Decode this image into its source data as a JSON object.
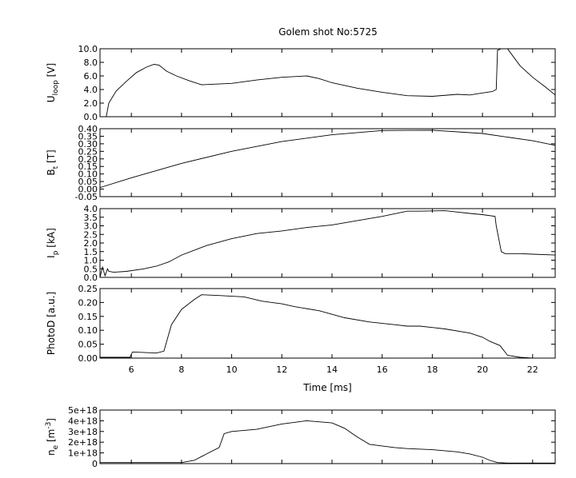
{
  "figure": {
    "title": "Golem shot No:5725"
  },
  "chart_data": [
    {
      "type": "line",
      "ylabel_main": "U",
      "ylabel_sub": "loop",
      "ylabel_tail": " [V]",
      "ylim": [
        0,
        10
      ],
      "yticks": [
        "0.0",
        "2.0",
        "4.0",
        "6.0",
        "8.0",
        "10.0"
      ],
      "xlim": [
        4.75,
        22.9
      ],
      "series": [
        {
          "x": [
            5.0,
            5.1,
            5.4,
            5.8,
            6.2,
            6.6,
            6.9,
            7.1,
            7.4,
            7.8,
            8.3,
            8.8,
            10,
            11,
            12,
            13,
            13.5,
            14,
            15,
            16,
            17,
            18,
            19,
            19.5,
            20,
            20.4,
            20.55,
            20.6,
            20.7,
            20.72,
            21.0,
            21.5,
            22,
            22.5,
            22.9
          ],
          "y": [
            0.0,
            2.0,
            3.8,
            5.2,
            6.5,
            7.3,
            7.7,
            7.6,
            6.7,
            6.0,
            5.3,
            4.7,
            4.9,
            5.4,
            5.8,
            6.0,
            5.6,
            5.0,
            4.2,
            3.6,
            3.1,
            3.0,
            3.3,
            3.2,
            3.5,
            3.7,
            4.0,
            9.8,
            9.9,
            10.0,
            10.0,
            7.5,
            5.8,
            4.4,
            3.2
          ]
        }
      ]
    },
    {
      "type": "line",
      "ylabel_main": "B",
      "ylabel_sub": "t",
      "ylabel_tail": " [T]",
      "ylim": [
        -0.05,
        0.4
      ],
      "yticks": [
        "-0.05",
        "0.00",
        "0.05",
        "0.10",
        "0.15",
        "0.20",
        "0.25",
        "0.30",
        "0.35",
        "0.40"
      ],
      "xlim": [
        4.75,
        22.9
      ],
      "series": [
        {
          "x": [
            4.75,
            6,
            8,
            10,
            12,
            14,
            16,
            18,
            20,
            22,
            22.9
          ],
          "y": [
            0.01,
            0.075,
            0.17,
            0.25,
            0.315,
            0.36,
            0.388,
            0.39,
            0.368,
            0.32,
            0.29
          ]
        }
      ]
    },
    {
      "type": "line",
      "ylabel_main": "I",
      "ylabel_sub": "p",
      "ylabel_tail": " [kA]",
      "ylim": [
        0,
        4.0
      ],
      "yticks": [
        "0.0",
        "0.5",
        "1.0",
        "1.5",
        "2.0",
        "2.5",
        "3.0",
        "3.5",
        "4.0"
      ],
      "xlim": [
        4.75,
        22.9
      ],
      "series": [
        {
          "x": [
            4.75,
            4.85,
            4.95,
            5.05,
            5.1,
            5.3,
            5.8,
            6.5,
            7.0,
            7.5,
            8.0,
            9.0,
            10.0,
            11.0,
            12.0,
            13.0,
            14.0,
            15.0,
            16.0,
            17.0,
            17.5,
            18.5,
            19.0,
            19.5,
            20.0,
            20.5,
            20.55,
            20.75,
            20.9,
            21.5,
            22.0,
            22.9
          ],
          "y": [
            0.0,
            0.6,
            0.1,
            0.5,
            0.35,
            0.3,
            0.35,
            0.5,
            0.65,
            0.9,
            1.3,
            1.85,
            2.25,
            2.55,
            2.7,
            2.9,
            3.05,
            3.3,
            3.55,
            3.85,
            3.85,
            3.88,
            3.8,
            3.72,
            3.65,
            3.55,
            3.0,
            1.5,
            1.38,
            1.38,
            1.35,
            1.3
          ]
        }
      ]
    },
    {
      "type": "line",
      "ylabel_main": "PhotoD",
      "ylabel_sub": "",
      "ylabel_tail": " [a.u.]",
      "ylim": [
        0,
        0.25
      ],
      "yticks": [
        "0.00",
        "0.05",
        "0.10",
        "0.15",
        "0.20",
        "0.25"
      ],
      "xlim": [
        4.75,
        22.9
      ],
      "xticks": [
        "6",
        "8",
        "10",
        "12",
        "14",
        "16",
        "18",
        "20",
        "22"
      ],
      "xlabel": "Time [ms]",
      "series": [
        {
          "x": [
            4.75,
            5.95,
            6.0,
            6.05,
            7.0,
            7.3,
            7.6,
            8.0,
            8.5,
            8.8,
            9.5,
            10.5,
            11.2,
            11.6,
            12.0,
            12.5,
            13.5,
            14.5,
            15.5,
            16.5,
            17.0,
            17.5,
            18.0,
            18.5,
            19.5,
            20.0,
            20.3,
            20.7,
            21.0,
            21.5,
            22.0,
            22.9
          ],
          "y": [
            0.003,
            0.003,
            0.015,
            0.022,
            0.018,
            0.025,
            0.12,
            0.175,
            0.21,
            0.228,
            0.225,
            0.22,
            0.205,
            0.2,
            0.195,
            0.185,
            0.17,
            0.145,
            0.13,
            0.12,
            0.115,
            0.115,
            0.11,
            0.105,
            0.09,
            0.075,
            0.06,
            0.045,
            0.01,
            0.003,
            0.0,
            0.0
          ]
        }
      ]
    },
    {
      "type": "line",
      "ylabel_main": "n",
      "ylabel_sub": "e",
      "ylabel_tail": " [m",
      "ylabel_sup": "-3",
      "ylabel_end": "]",
      "ylim": [
        0,
        5e+18
      ],
      "yticks": [
        "0",
        "1e+18",
        "2e+18",
        "3e+18",
        "4e+18",
        "5e+18"
      ],
      "xlim": [
        4.75,
        22.9
      ],
      "series": [
        {
          "x": [
            4.75,
            8.0,
            8.5,
            9.0,
            9.5,
            9.7,
            10.0,
            11.0,
            12.0,
            13.0,
            14.0,
            14.5,
            15.0,
            15.5,
            16.5,
            17.0,
            18.0,
            19.0,
            19.5,
            20.0,
            20.3,
            20.6,
            21.0,
            22.0,
            22.9
          ],
          "y": [
            1e+17,
            1e+17,
            3e+17,
            9e+17,
            1.5e+18,
            2.8e+18,
            3e+18,
            3.2e+18,
            3.7e+18,
            4e+18,
            3.8e+18,
            3.3e+18,
            2.5e+18,
            1.8e+18,
            1.5e+18,
            1.4e+18,
            1.3e+18,
            1.1e+18,
            9e+17,
            6e+17,
            3e+17,
            1e+17,
            5e+16,
            5e+16,
            5e+16
          ]
        }
      ]
    }
  ]
}
